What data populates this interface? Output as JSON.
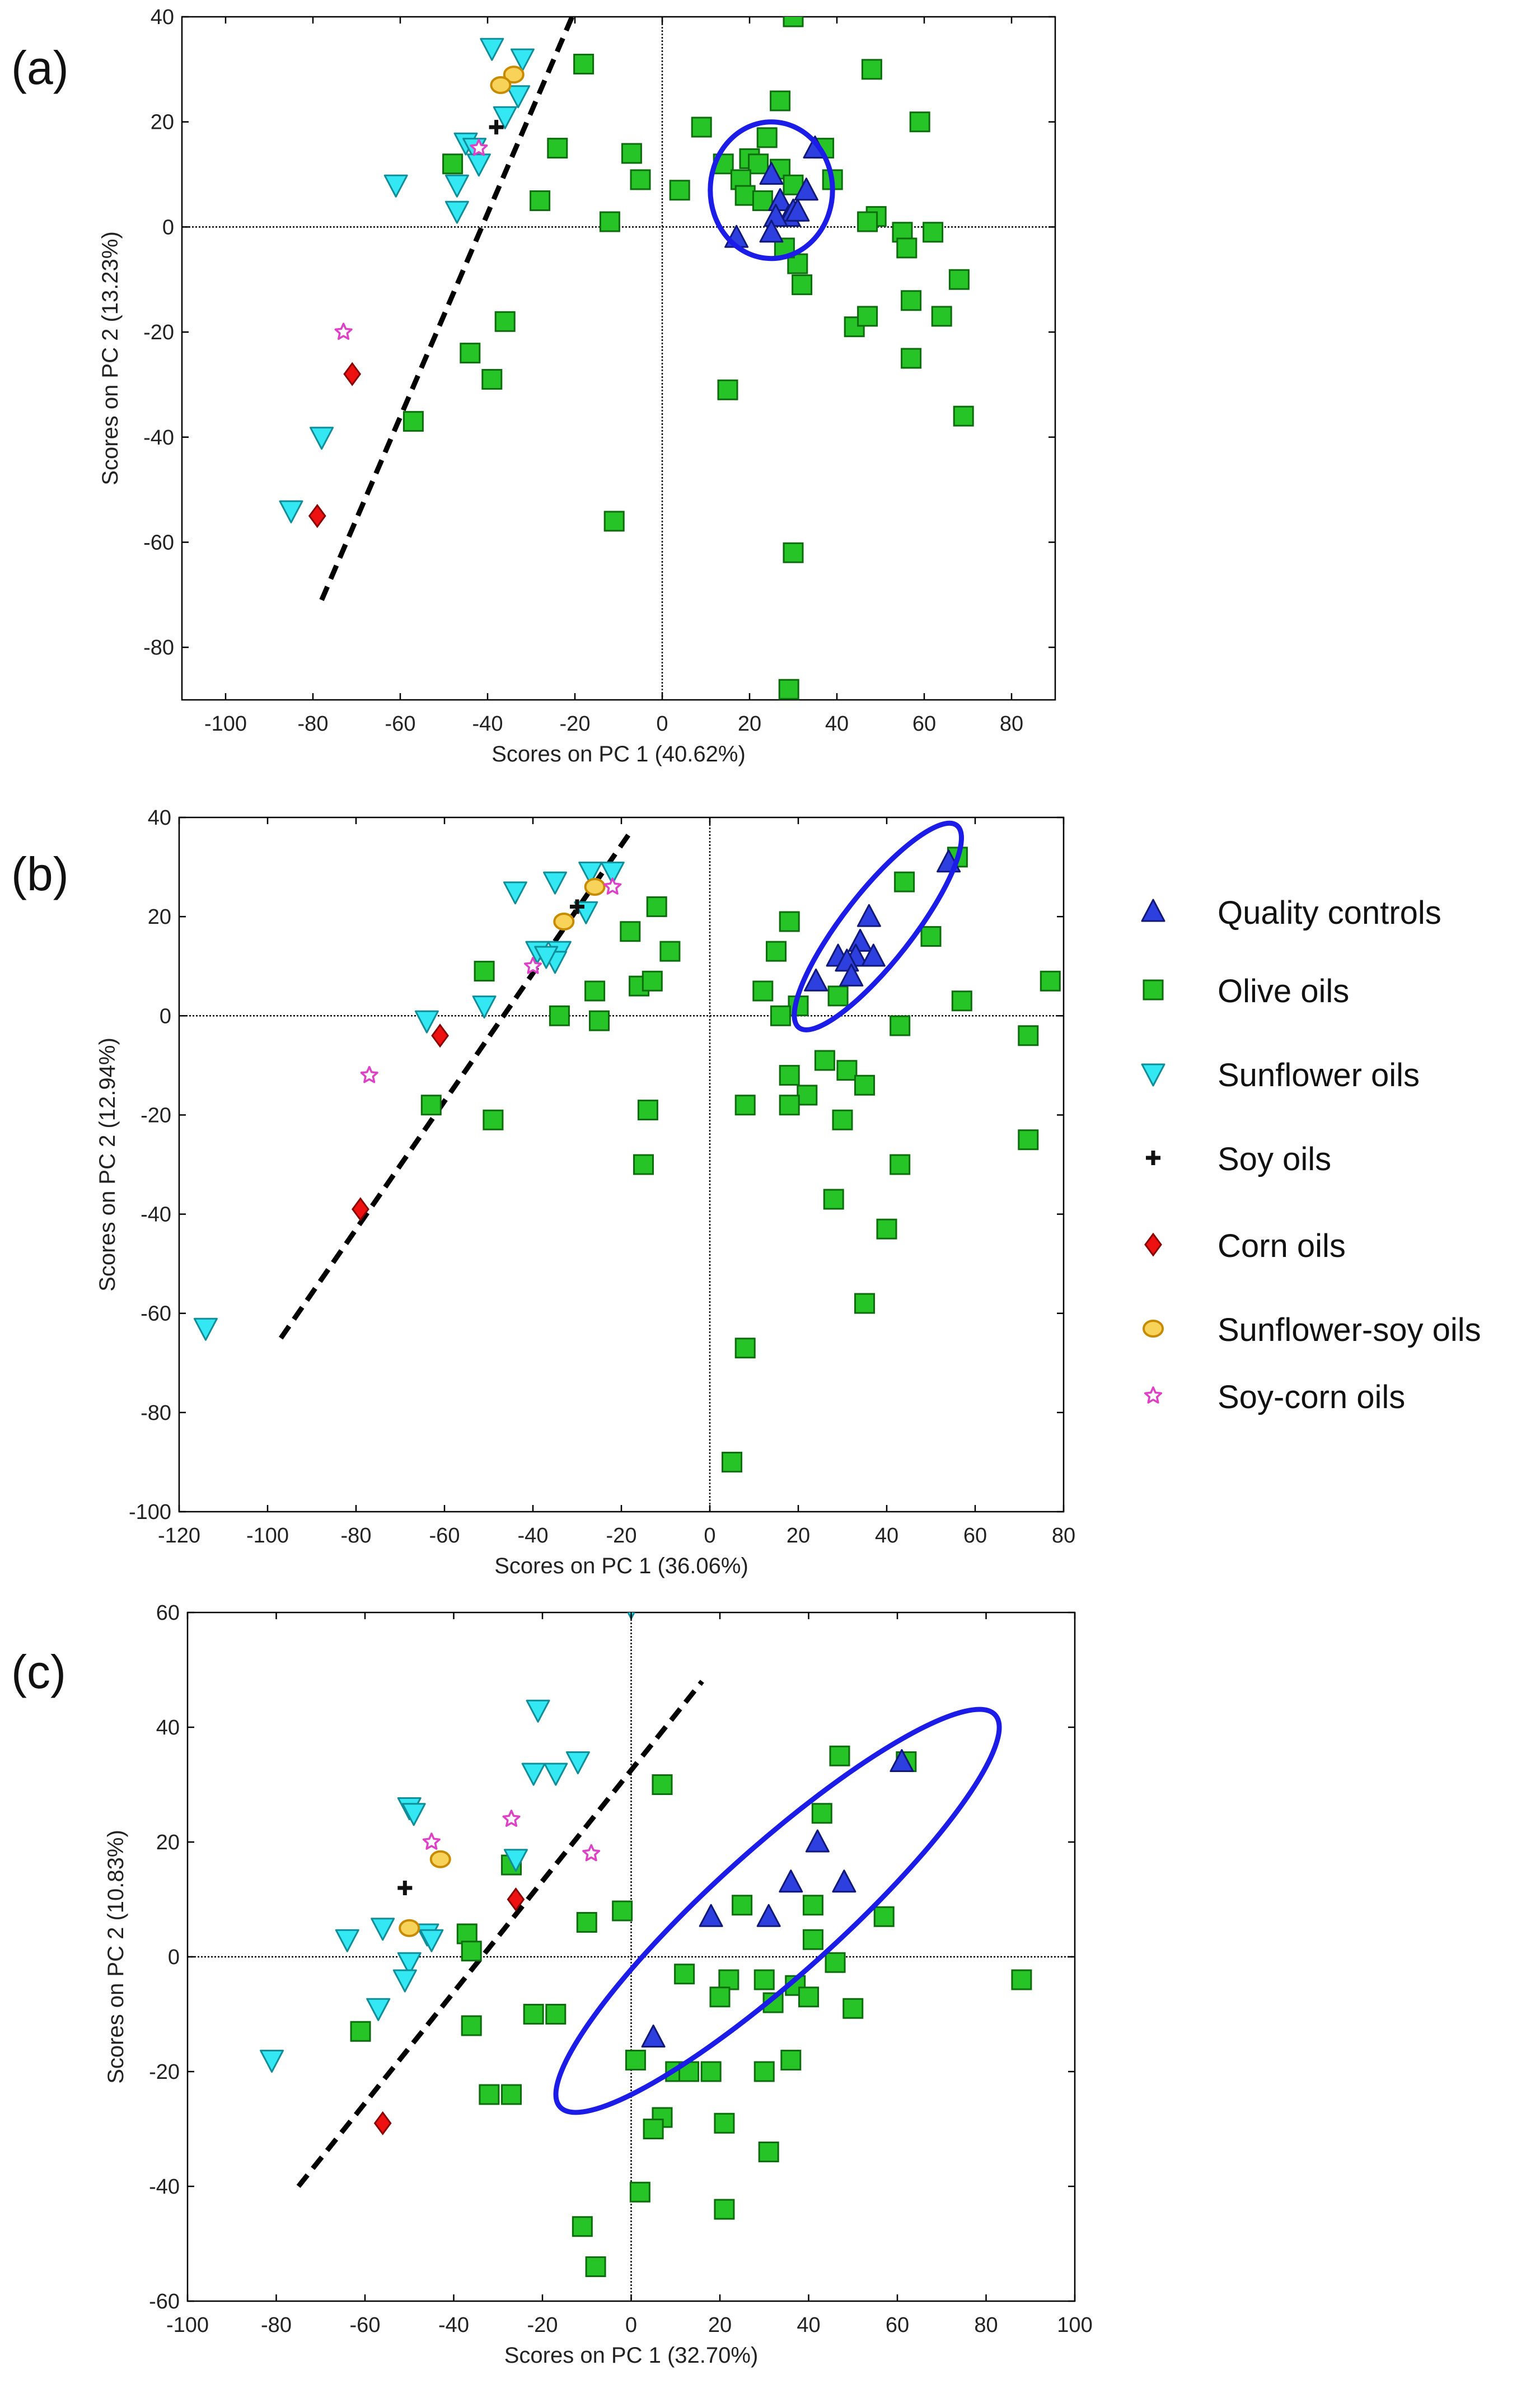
{
  "legend": [
    {
      "key": "qc",
      "label": "Quality controls",
      "marker": "triangle-up",
      "fill": "#2e3fe0",
      "stroke": "#10187a"
    },
    {
      "key": "olive",
      "label": "Olive oils",
      "marker": "square",
      "fill": "#27c427",
      "stroke": "#0d6d0d"
    },
    {
      "key": "sunflower",
      "label": "Sunflower oils",
      "marker": "triangle-down",
      "fill": "#33e8f2",
      "stroke": "#0f8e9a"
    },
    {
      "key": "soy",
      "label": "Soy oils",
      "marker": "cross",
      "fill": "#111111",
      "stroke": "#111111"
    },
    {
      "key": "corn",
      "label": "Corn oils",
      "marker": "diamond",
      "fill": "#ee1111",
      "stroke": "#8a0000"
    },
    {
      "key": "sunsoy",
      "label": "Sunflower-soy oils",
      "marker": "circle",
      "fill": "#f7d35a",
      "stroke": "#c98a00"
    },
    {
      "key": "soycorn",
      "label": "Soy-corn oils",
      "marker": "star",
      "fill": "#ffffff",
      "stroke": "#e040c8"
    }
  ],
  "chart_data": [
    {
      "type": "scatter",
      "panel_label": "(a)",
      "xlabel": "Scores on PC 1 (40.62%)",
      "ylabel": "Scores on PC 2 (13.23%)",
      "xlim": [
        -110,
        90
      ],
      "ylim": [
        -90,
        40
      ],
      "xticks": [
        -100,
        -80,
        -60,
        -40,
        -20,
        0,
        20,
        40,
        60,
        80
      ],
      "yticks": [
        -80,
        -60,
        -40,
        -20,
        0,
        20,
        40
      ],
      "dashed_line": [
        [
          -78,
          -71
        ],
        [
          -16,
          49
        ]
      ],
      "ellipse": {
        "cx": 25,
        "cy": 7,
        "rx": 14,
        "ry": 13,
        "angle": 0
      },
      "series": {
        "qc": [
          [
            25,
            10
          ],
          [
            27,
            5
          ],
          [
            29,
            2
          ],
          [
            30,
            3
          ],
          [
            33,
            7
          ],
          [
            26,
            2
          ],
          [
            25,
            -1
          ],
          [
            31,
            3
          ],
          [
            17,
            -2
          ],
          [
            35,
            15
          ]
        ],
        "olive": [
          [
            30,
            40
          ],
          [
            48,
            30
          ],
          [
            -18,
            31
          ],
          [
            27,
            24
          ],
          [
            59,
            20
          ],
          [
            9,
            19
          ],
          [
            -24,
            15
          ],
          [
            -7,
            14
          ],
          [
            24,
            17
          ],
          [
            37,
            15
          ],
          [
            14,
            12
          ],
          [
            20,
            13
          ],
          [
            22,
            12
          ],
          [
            18,
            9
          ],
          [
            27,
            11
          ],
          [
            -48,
            12
          ],
          [
            -5,
            9
          ],
          [
            4,
            7
          ],
          [
            30,
            8
          ],
          [
            39,
            9
          ],
          [
            19,
            6
          ],
          [
            -28,
            5
          ],
          [
            23,
            5
          ],
          [
            -12,
            1
          ],
          [
            49,
            2
          ],
          [
            47,
            1
          ],
          [
            55,
            -1
          ],
          [
            56,
            -4
          ],
          [
            62,
            -1
          ],
          [
            31,
            -7
          ],
          [
            32,
            -11
          ],
          [
            68,
            -10
          ],
          [
            28,
            -4
          ],
          [
            44,
            -19
          ],
          [
            47,
            -17
          ],
          [
            57,
            -14
          ],
          [
            -36,
            -18
          ],
          [
            64,
            -17
          ],
          [
            -44,
            -24
          ],
          [
            57,
            -25
          ],
          [
            -39,
            -29
          ],
          [
            15,
            -31
          ],
          [
            -57,
            -37
          ],
          [
            69,
            -36
          ],
          [
            -11,
            -56
          ],
          [
            30,
            -62
          ],
          [
            29,
            -88
          ]
        ],
        "sunflower": [
          [
            -39,
            34
          ],
          [
            -32,
            32
          ],
          [
            -33,
            25
          ],
          [
            -36,
            21
          ],
          [
            -45,
            16
          ],
          [
            -43,
            15
          ],
          [
            -42,
            12
          ],
          [
            -47,
            8
          ],
          [
            -61,
            8
          ],
          [
            -47,
            3
          ],
          [
            -78,
            -40
          ],
          [
            -85,
            -54
          ]
        ],
        "soy": [
          [
            -38,
            19
          ]
        ],
        "corn": [
          [
            -71,
            -28
          ],
          [
            -79,
            -55
          ]
        ],
        "sunsoy": [
          [
            -34,
            29
          ],
          [
            -37,
            27
          ]
        ],
        "soycorn": [
          [
            -42,
            15
          ],
          [
            -73,
            -20
          ]
        ]
      }
    },
    {
      "type": "scatter",
      "panel_label": "(b)",
      "xlabel": "Scores on PC 1 (36.06%)",
      "ylabel": "Scores on PC 2 (12.94%)",
      "xlim": [
        -120,
        80
      ],
      "ylim": [
        -100,
        40
      ],
      "xticks": [
        -120,
        -100,
        -80,
        -60,
        -40,
        -20,
        0,
        20,
        40,
        60,
        80
      ],
      "yticks": [
        -100,
        -80,
        -60,
        -40,
        -20,
        0,
        20,
        40
      ],
      "dashed_line": [
        [
          -97,
          -65
        ],
        [
          -18,
          37
        ]
      ],
      "ellipse": {
        "cx": 38,
        "cy": 18,
        "rx": 29,
        "ry": 7,
        "angle": -52
      },
      "series": {
        "qc": [
          [
            54,
            31
          ],
          [
            36,
            20
          ],
          [
            34,
            15
          ],
          [
            29,
            12
          ],
          [
            33,
            12
          ],
          [
            31,
            11
          ],
          [
            32,
            8
          ],
          [
            37,
            12
          ],
          [
            24,
            7
          ]
        ],
        "olive": [
          [
            56,
            32
          ],
          [
            44,
            27
          ],
          [
            -12,
            22
          ],
          [
            -18,
            17
          ],
          [
            50,
            16
          ],
          [
            18,
            19
          ],
          [
            -9,
            13
          ],
          [
            15,
            13
          ],
          [
            20,
            2
          ],
          [
            -26,
            5
          ],
          [
            -16,
            6
          ],
          [
            -13,
            7
          ],
          [
            12,
            5
          ],
          [
            29,
            4
          ],
          [
            -51,
            9
          ],
          [
            -34,
            0
          ],
          [
            16,
            0
          ],
          [
            57,
            3
          ],
          [
            -25,
            -1
          ],
          [
            43,
            -2
          ],
          [
            72,
            -4
          ],
          [
            77,
            7
          ],
          [
            26,
            -9
          ],
          [
            18,
            -12
          ],
          [
            31,
            -11
          ],
          [
            35,
            -14
          ],
          [
            22,
            -16
          ],
          [
            18,
            -18
          ],
          [
            8,
            -18
          ],
          [
            -63,
            -18
          ],
          [
            -49,
            -21
          ],
          [
            -14,
            -19
          ],
          [
            30,
            -21
          ],
          [
            72,
            -25
          ],
          [
            -15,
            -30
          ],
          [
            43,
            -30
          ],
          [
            28,
            -37
          ],
          [
            40,
            -43
          ],
          [
            35,
            -58
          ],
          [
            8,
            -67
          ],
          [
            5,
            -90
          ]
        ],
        "sunflower": [
          [
            -27,
            29
          ],
          [
            -22,
            29
          ],
          [
            -44,
            25
          ],
          [
            -35,
            27
          ],
          [
            -39,
            13
          ],
          [
            -34,
            13
          ],
          [
            -35,
            11
          ],
          [
            -37,
            12
          ],
          [
            -28,
            21
          ],
          [
            -64,
            -1
          ],
          [
            -51,
            2
          ],
          [
            -114,
            -63
          ]
        ],
        "soy": [
          [
            -30,
            22
          ]
        ],
        "corn": [
          [
            -61,
            -4
          ],
          [
            -79,
            -39
          ]
        ],
        "sunsoy": [
          [
            -26,
            26
          ],
          [
            -33,
            19
          ]
        ],
        "soycorn": [
          [
            -22,
            26
          ],
          [
            -40,
            10
          ],
          [
            -77,
            -12
          ]
        ]
      }
    },
    {
      "type": "scatter",
      "panel_label": "(c)",
      "xlabel": "Scores on PC 1 (32.70%)",
      "ylabel": "Scores on PC 2 (10.83%)",
      "xlim": [
        -100,
        100
      ],
      "ylim": [
        -60,
        60
      ],
      "xticks": [
        -100,
        -80,
        -60,
        -40,
        -20,
        0,
        20,
        40,
        60,
        80,
        100
      ],
      "yticks": [
        -60,
        -40,
        -20,
        0,
        20,
        40,
        60
      ],
      "dashed_line": [
        [
          -75,
          -40
        ],
        [
          16,
          48
        ]
      ],
      "ellipse": {
        "cx": 33,
        "cy": 8,
        "rx": 66,
        "ry": 11,
        "angle": -42
      },
      "series": {
        "qc": [
          [
            61,
            34
          ],
          [
            42,
            20
          ],
          [
            48,
            13
          ],
          [
            36,
            13
          ],
          [
            18,
            7
          ],
          [
            31,
            7
          ],
          [
            5,
            -14
          ]
        ],
        "olive": [
          [
            62,
            34
          ],
          [
            47,
            35
          ],
          [
            7,
            30
          ],
          [
            43,
            25
          ],
          [
            -27,
            16
          ],
          [
            -10,
            6
          ],
          [
            -2,
            8
          ],
          [
            25,
            9
          ],
          [
            41,
            9
          ],
          [
            57,
            7
          ],
          [
            -37,
            4
          ],
          [
            -36,
            1
          ],
          [
            41,
            3
          ],
          [
            12,
            -3
          ],
          [
            22,
            -4
          ],
          [
            30,
            -4
          ],
          [
            37,
            -5
          ],
          [
            46,
            -1
          ],
          [
            88,
            -4
          ],
          [
            20,
            -7
          ],
          [
            32,
            -8
          ],
          [
            40,
            -7
          ],
          [
            50,
            -9
          ],
          [
            -61,
            -13
          ],
          [
            -36,
            -12
          ],
          [
            -22,
            -10
          ],
          [
            -17,
            -10
          ],
          [
            1,
            -18
          ],
          [
            10,
            -20
          ],
          [
            13,
            -20
          ],
          [
            18,
            -20
          ],
          [
            30,
            -20
          ],
          [
            36,
            -18
          ],
          [
            -32,
            -24
          ],
          [
            -27,
            -24
          ],
          [
            7,
            -28
          ],
          [
            5,
            -30
          ],
          [
            21,
            -29
          ],
          [
            31,
            -34
          ],
          [
            2,
            -41
          ],
          [
            21,
            -44
          ],
          [
            -11,
            -47
          ],
          [
            -8,
            -54
          ]
        ],
        "sunflower": [
          [
            0,
            61
          ],
          [
            -21,
            43
          ],
          [
            -22,
            32
          ],
          [
            -17,
            32
          ],
          [
            -12,
            34
          ],
          [
            -50,
            26
          ],
          [
            -49,
            25
          ],
          [
            -26,
            17
          ],
          [
            -64,
            3
          ],
          [
            -56,
            5
          ],
          [
            -46,
            4
          ],
          [
            -45,
            3
          ],
          [
            -50,
            -1
          ],
          [
            -51,
            -4
          ],
          [
            -57,
            -9
          ],
          [
            -81,
            -18
          ]
        ],
        "soy": [
          [
            -51,
            12
          ]
        ],
        "corn": [
          [
            -26,
            10
          ],
          [
            -56,
            -29
          ]
        ],
        "sunsoy": [
          [
            -43,
            17
          ],
          [
            -50,
            5
          ]
        ],
        "soycorn": [
          [
            -45,
            20
          ],
          [
            -27,
            24
          ],
          [
            -9,
            18
          ]
        ]
      }
    }
  ]
}
